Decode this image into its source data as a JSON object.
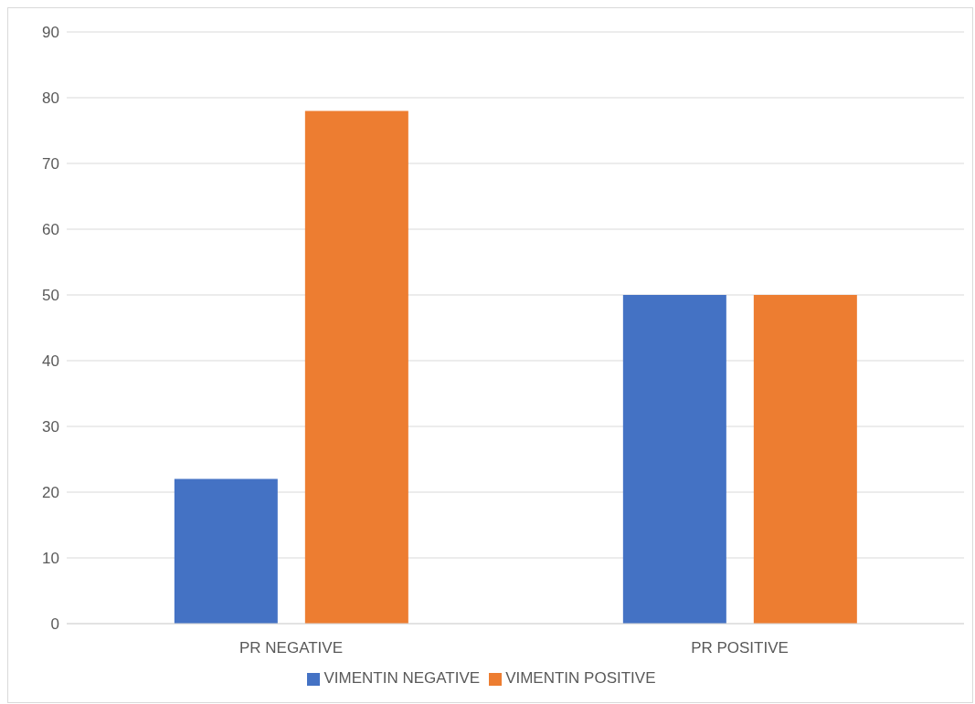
{
  "chart_data": {
    "type": "bar",
    "categories": [
      "PR NEGATIVE",
      "PR POSITIVE"
    ],
    "series": [
      {
        "name": "VIMENTIN NEGATIVE",
        "color": "#4472c4",
        "values": [
          22,
          50
        ]
      },
      {
        "name": "VIMENTIN POSITIVE",
        "color": "#ed7d31",
        "values": [
          78,
          50
        ]
      }
    ],
    "ylim": [
      0,
      90
    ],
    "yticks": [
      0,
      10,
      20,
      30,
      40,
      50,
      60,
      70,
      80,
      90
    ],
    "grid": "y",
    "legend": "bottom"
  }
}
